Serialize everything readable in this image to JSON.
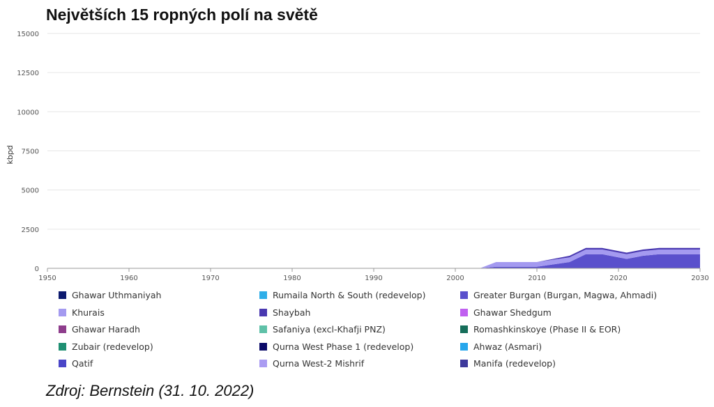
{
  "title": "Největších 15 ropných polí na světě",
  "source": "Zdroj: Bernstein (31. 10. 2022)",
  "chart_data": {
    "type": "area",
    "stacked": true,
    "title": "Největších 15 ropných polí na světě",
    "xlabel": "",
    "ylabel": "kbpd",
    "xlim": [
      1950,
      2030
    ],
    "ylim": [
      0,
      15000
    ],
    "x_ticks": [
      1950,
      1960,
      1970,
      1980,
      1990,
      2000,
      2010,
      2020,
      2030
    ],
    "y_ticks": [
      0,
      2500,
      5000,
      7500,
      10000,
      12500,
      15000
    ],
    "grid": "horizontal",
    "legend_position": "bottom",
    "x": [
      1950,
      1955,
      1960,
      1965,
      1970,
      1974,
      1978,
      1980,
      1984,
      1987,
      1990,
      1995,
      2000,
      2003,
      2005,
      2010,
      2014,
      2016,
      2018,
      2020,
      2021,
      2023,
      2025,
      2027,
      2030
    ],
    "series": [
      {
        "name": "Ghawar Uthmaniyah",
        "color": "#0d1a6e",
        "values": [
          0,
          0,
          0,
          0,
          0,
          0,
          0,
          0,
          0,
          0,
          0,
          0,
          0,
          0,
          0,
          0,
          0,
          0,
          0,
          0,
          0,
          0,
          0,
          0,
          0
        ]
      },
      {
        "name": "Rumaila North & South (redevelop)",
        "color": "#2faee8",
        "values": [
          0,
          0,
          0,
          0,
          0,
          0,
          0,
          0,
          0,
          0,
          0,
          0,
          0,
          0,
          0,
          0,
          0,
          0,
          0,
          0,
          0,
          0,
          0,
          0,
          0
        ]
      },
      {
        "name": "Greater Burgan (Burgan, Magwa, Ahmadi)",
        "color": "#5a50cc",
        "values": [
          0,
          0,
          0,
          0,
          0,
          0,
          0,
          0,
          0,
          0,
          0,
          0,
          0,
          0,
          100,
          100,
          400,
          900,
          900,
          700,
          600,
          800,
          900,
          900,
          900
        ]
      },
      {
        "name": "Khurais",
        "color": "#a49af0",
        "values": [
          0,
          0,
          0,
          0,
          0,
          0,
          0,
          0,
          0,
          0,
          0,
          0,
          0,
          0,
          300,
          300,
          300,
          300,
          300,
          300,
          300,
          300,
          300,
          300,
          300
        ]
      },
      {
        "name": "Shaybah",
        "color": "#4938b0",
        "values": [
          0,
          0,
          0,
          0,
          0,
          0,
          0,
          0,
          0,
          0,
          0,
          0,
          0,
          0,
          0,
          0,
          100,
          100,
          100,
          100,
          100,
          100,
          100,
          100,
          100
        ]
      },
      {
        "name": "Ghawar Shedgum",
        "color": "#c060f0",
        "values": [
          0,
          0,
          0,
          0,
          0,
          0,
          0,
          0,
          0,
          0,
          0,
          0,
          0,
          0,
          0,
          0,
          0,
          0,
          0,
          0,
          0,
          0,
          0,
          0,
          0
        ]
      },
      {
        "name": "Ghawar Haradh",
        "color": "#8e3d8c",
        "values": [
          0,
          0,
          0,
          0,
          0,
          0,
          0,
          0,
          0,
          0,
          0,
          0,
          0,
          0,
          0,
          0,
          0,
          0,
          0,
          0,
          0,
          0,
          0,
          0,
          0
        ]
      },
      {
        "name": "Safaniya (excl-Khafji PNZ)",
        "color": "#5fc1a8",
        "values": [
          0,
          0,
          0,
          0,
          0,
          0,
          0,
          0,
          0,
          0,
          0,
          0,
          0,
          0,
          0,
          0,
          0,
          0,
          0,
          0,
          0,
          0,
          0,
          0,
          0
        ]
      },
      {
        "name": "Romashkinskoye (Phase II & EOR)",
        "color": "#166e5a",
        "values": [
          0,
          0,
          0,
          0,
          0,
          0,
          0,
          0,
          0,
          0,
          0,
          0,
          0,
          0,
          0,
          0,
          0,
          0,
          0,
          0,
          0,
          0,
          0,
          0,
          0
        ]
      },
      {
        "name": "Zubair (redevelop)",
        "color": "#1f8f72",
        "values": [
          0,
          0,
          0,
          0,
          0,
          0,
          0,
          0,
          0,
          0,
          0,
          0,
          0,
          0,
          0,
          0,
          0,
          0,
          0,
          0,
          0,
          0,
          0,
          0,
          0
        ]
      },
      {
        "name": "Qurna West Phase 1 (redevelop)",
        "color": "#0b0a68",
        "values": [
          0,
          0,
          0,
          0,
          0,
          0,
          0,
          0,
          0,
          0,
          0,
          0,
          0,
          0,
          0,
          0,
          0,
          0,
          0,
          0,
          0,
          0,
          0,
          0,
          0
        ]
      },
      {
        "name": "Ahwaz (Asmari)",
        "color": "#26a6ec",
        "values": [
          0,
          0,
          0,
          0,
          0,
          0,
          0,
          0,
          0,
          0,
          0,
          0,
          0,
          0,
          0,
          0,
          0,
          0,
          0,
          0,
          0,
          0,
          0,
          0,
          0
        ]
      },
      {
        "name": "Qatif",
        "color": "#4a46c8",
        "values": [
          0,
          0,
          0,
          0,
          0,
          0,
          0,
          0,
          0,
          0,
          0,
          0,
          0,
          0,
          0,
          0,
          0,
          0,
          0,
          0,
          0,
          0,
          0,
          0,
          0
        ]
      },
      {
        "name": "Qurna West-2 Mishrif",
        "color": "#aa9cf2",
        "values": [
          0,
          0,
          0,
          0,
          0,
          0,
          0,
          0,
          0,
          0,
          0,
          0,
          0,
          0,
          0,
          0,
          0,
          0,
          0,
          0,
          0,
          0,
          0,
          0,
          0
        ]
      },
      {
        "name": "Manifa (redevelop)",
        "color": "#3e3a9c",
        "values": [
          0,
          0,
          0,
          0,
          0,
          0,
          0,
          0,
          0,
          0,
          0,
          0,
          0,
          0,
          0,
          0,
          0,
          0,
          0,
          0,
          0,
          0,
          0,
          0,
          0
        ]
      }
    ]
  }
}
